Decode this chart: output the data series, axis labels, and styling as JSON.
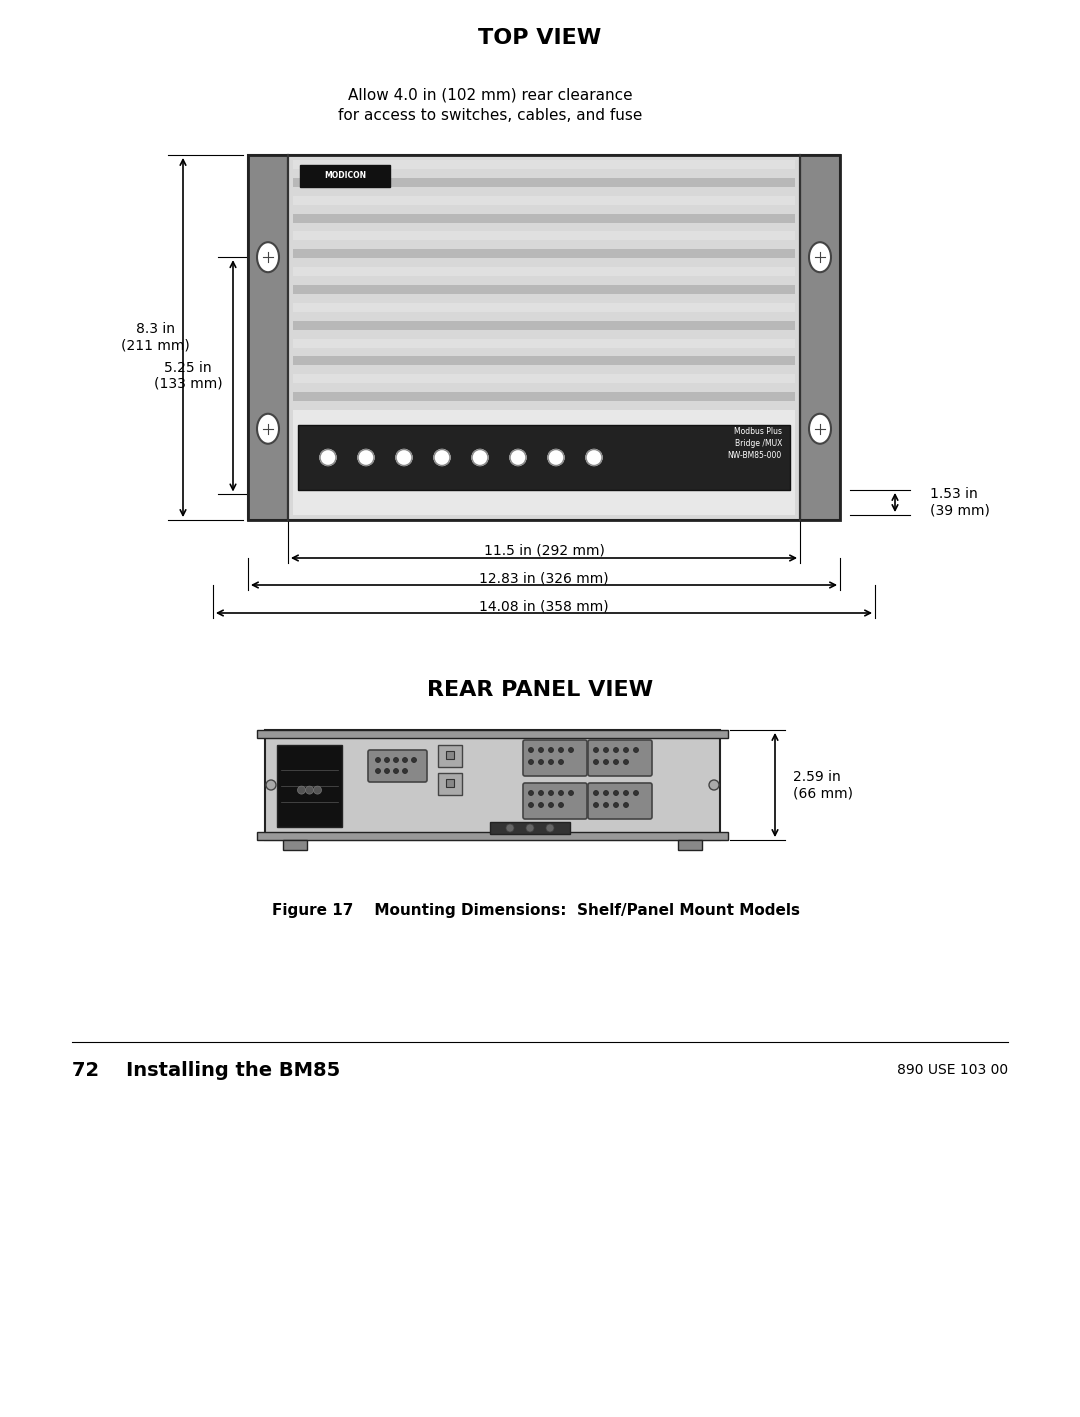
{
  "page_bg": "#ffffff",
  "page_width": 10.8,
  "page_height": 14.17,
  "top_view_title": "TOP VIEW",
  "top_view_note_line1": "Allow 4.0 in (102 mm) rear clearance",
  "top_view_note_line2": "for access to switches, cables, and fuse",
  "rear_panel_title": "REAR PANEL VIEW",
  "fig_caption": "Figure 17    Mounting Dimensions:  Shelf/Panel Mount Models",
  "footer_left": "72    Installing the BM85",
  "footer_right": "890 USE 103 00",
  "dim_83_label": "8.3 in\n(211 mm)",
  "dim_525_label": "5.25 in\n(133 mm)",
  "dim_153_label": "1.53 in\n(39 mm)",
  "dim_115_label": "11.5 in (292 mm)",
  "dim_1283_label": "12.83 in (326 mm)",
  "dim_1408_label": "14.08 in (358 mm)",
  "dim_259_label": "2.59 in\n(66 mm)",
  "modicon_label": "MODICON",
  "modbus_label": "Modbus Plus\nBridge /MUX\nNW-BM85-000",
  "color_dark_gray": "#555555",
  "color_mid_gray": "#aaaaaa",
  "color_light_gray": "#cccccc",
  "color_very_light_gray": "#dddddd",
  "color_panel_gray": "#bbbbbb",
  "color_stripe_dark": "#999999",
  "color_stripe_light": "#dddddd",
  "color_black": "#111111",
  "color_bracket_gray": "#888888",
  "color_rear_bg": "#c0c0c0"
}
